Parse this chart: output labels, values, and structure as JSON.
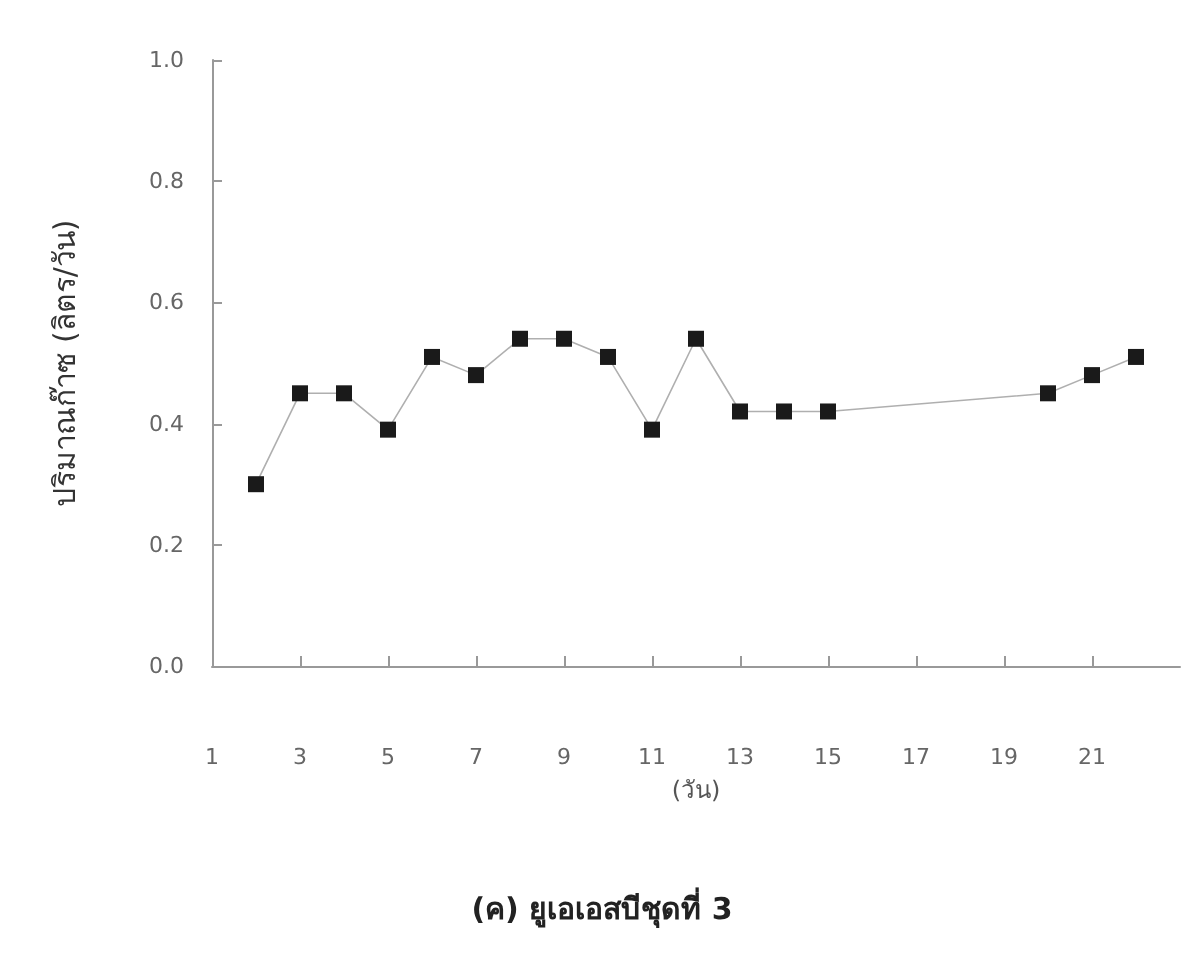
{
  "chart_data": {
    "type": "line",
    "title": "(ค) ยูเอเอสบีชุดที่ 3",
    "xlabel": "(วัน)",
    "ylabel": "ปริมาณก๊าซ (ลิตร/วัน)",
    "x": [
      2,
      3,
      4,
      5,
      6,
      7,
      8,
      9,
      10,
      11,
      12,
      13,
      14,
      15,
      20,
      21,
      22
    ],
    "series": [
      {
        "color": "#1a1a1a",
        "values": [
          0.3,
          0.45,
          0.45,
          0.39,
          0.51,
          0.48,
          0.54,
          0.54,
          0.51,
          0.39,
          0.54,
          0.42,
          0.42,
          0.42,
          0.45,
          0.48,
          0.51
        ]
      }
    ],
    "xlim": [
      1,
      23
    ],
    "xticks": [
      1,
      3,
      5,
      7,
      9,
      11,
      13,
      15,
      17,
      19,
      21
    ],
    "ylim": [
      0,
      1
    ],
    "yticks": [
      {
        "value": 0,
        "label": "0.0"
      },
      {
        "value": 0.2,
        "label": "0.2"
      },
      {
        "value": 0.4,
        "label": "0.4"
      },
      {
        "value": 0.6,
        "label": "0.6"
      },
      {
        "value": 0.8,
        "label": "0.8"
      },
      {
        "value": 1,
        "label": "1.0"
      }
    ],
    "marker": "square",
    "grid": false
  }
}
